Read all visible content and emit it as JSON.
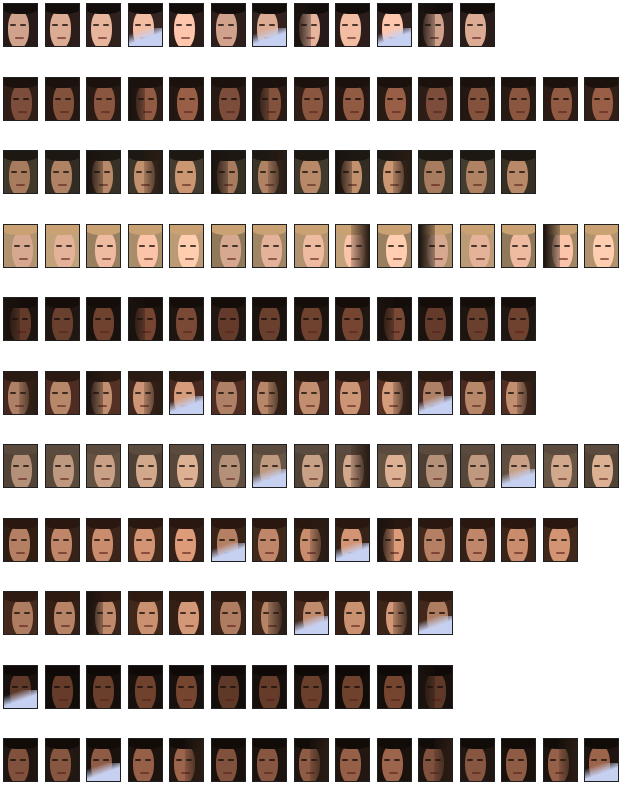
{
  "rows": [
    {
      "tracklet": "asian-woman",
      "count": 12,
      "bg": "#2e1f1c",
      "skin": "#e7b49c",
      "hair": "#120d0b",
      "occluded": [
        3,
        6,
        7,
        9,
        10
      ]
    },
    {
      "tracklet": "dark-skinned-man-a",
      "count": 15,
      "bg": "#2a1a14",
      "skin": "#8a5640",
      "hair": "#1c120d",
      "occluded": [
        3,
        6
      ]
    },
    {
      "tracklet": "man-with-cap",
      "count": 13,
      "bg": "#3b3428",
      "skin": "#b88968",
      "hair": "#1e1812",
      "occluded": [
        2,
        3,
        5,
        6,
        8,
        9
      ]
    },
    {
      "tracklet": "blonde-woman",
      "count": 15,
      "bg": "#a98d6a",
      "skin": "#efbba0",
      "hair": "#c9a173",
      "occluded": [
        8,
        10,
        13
      ]
    },
    {
      "tracklet": "dark-skinned-man-b",
      "count": 13,
      "bg": "#1d1410",
      "skin": "#6f4230",
      "hair": "#140d0a",
      "occluded": [
        0,
        3,
        9
      ]
    },
    {
      "tracklet": "young-man-red-jacket",
      "count": 13,
      "bg": "#4a2a20",
      "skin": "#c18e70",
      "hair": "#2a1a12",
      "occluded": [
        0,
        2,
        3,
        4,
        6,
        9,
        10,
        12
      ]
    },
    {
      "tracklet": "man-with-glasses",
      "count": 15,
      "bg": "#5a4a3c",
      "skin": "#c8a086",
      "hair": "#5b4a3e",
      "occluded": [
        6,
        8,
        12
      ]
    },
    {
      "tracklet": "man-blue-shirt",
      "count": 14,
      "bg": "#3a2418",
      "skin": "#c98d6e",
      "hair": "#2a1810",
      "occluded": [
        5,
        7,
        8,
        9
      ]
    },
    {
      "tracklet": "smiling-young-man",
      "count": 11,
      "bg": "#3c2418",
      "skin": "#c08a6c",
      "hair": "#2e1a10",
      "occluded": [
        2,
        6,
        7,
        9,
        10
      ]
    },
    {
      "tracklet": "dark-skinned-man-c",
      "count": 11,
      "bg": "#160f0c",
      "skin": "#6a3f2c",
      "hair": "#0f0a08",
      "occluded": [
        0,
        10
      ]
    },
    {
      "tracklet": "dark-haired-man",
      "count": 15,
      "bg": "#1e140f",
      "skin": "#8e5b44",
      "hair": "#120c09",
      "occluded": [
        2,
        4,
        7,
        10,
        13,
        14
      ]
    }
  ]
}
